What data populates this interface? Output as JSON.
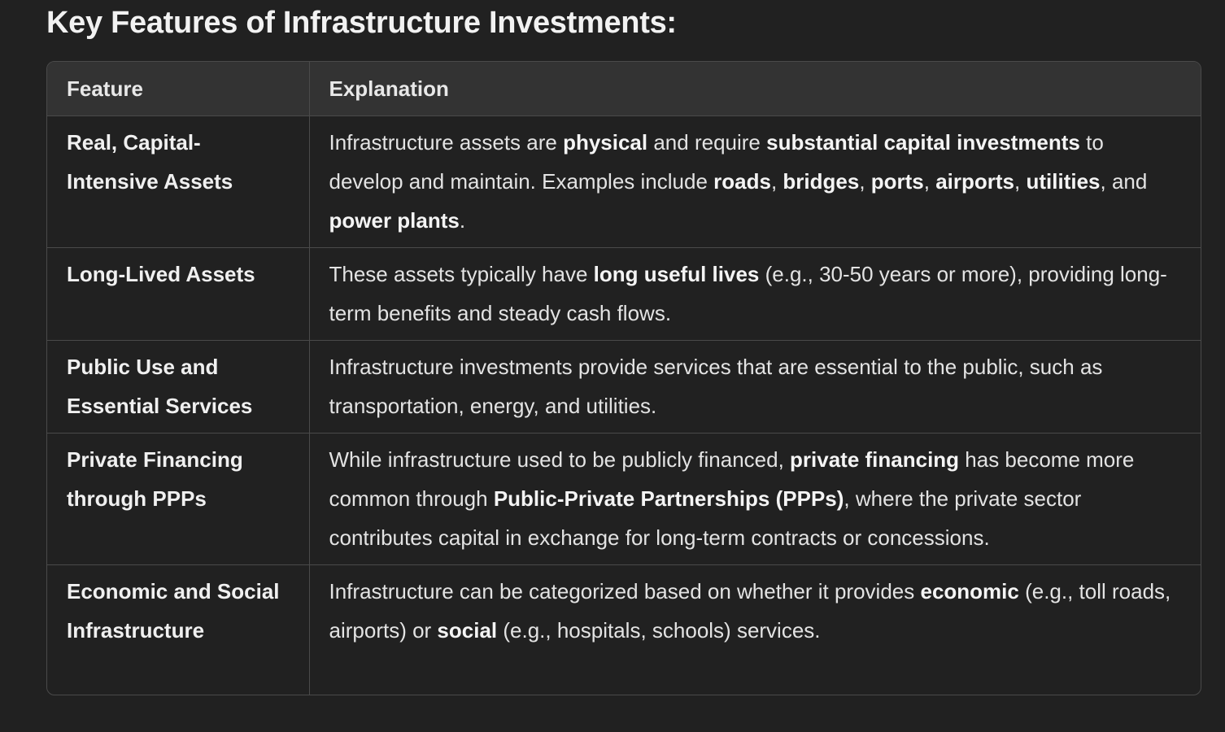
{
  "heading": "Key Features of Infrastructure Investments:",
  "table": {
    "headers": [
      "Feature",
      "Explanation"
    ],
    "rows": [
      {
        "feature": "Real, Capital-Intensive Assets",
        "e": [
          "Infrastructure assets are ",
          "physical",
          " and require ",
          "substantial capital investments",
          " to develop and maintain. Examples include ",
          "roads",
          ", ",
          "bridges",
          ", ",
          "ports",
          ", ",
          "airports",
          ", ",
          "utilities",
          ", and ",
          "power plants",
          "."
        ]
      },
      {
        "feature": "Long-Lived Assets",
        "e": [
          "These assets typically have ",
          "long useful lives",
          " (e.g., 30-50 years or more), providing long-term benefits and steady cash flows."
        ]
      },
      {
        "feature": "Public Use and Essential Services",
        "e": [
          "Infrastructure investments provide services that are essential to the public, such as transportation, energy, and utilities."
        ]
      },
      {
        "feature": "Private Financing through PPPs",
        "e": [
          "While infrastructure used to be publicly financed, ",
          "private financing",
          " has become more common through ",
          "Public-Private Partnerships (PPPs)",
          ", where the private sector contributes capital in exchange for long-term contracts or concessions."
        ]
      },
      {
        "feature": "Economic and Social Infrastructure",
        "e": [
          "Infrastructure can be categorized based on whether it provides ",
          "economic",
          " (e.g., toll roads, airports) or ",
          "social",
          " (e.g., hospitals, schools) services."
        ]
      }
    ]
  }
}
